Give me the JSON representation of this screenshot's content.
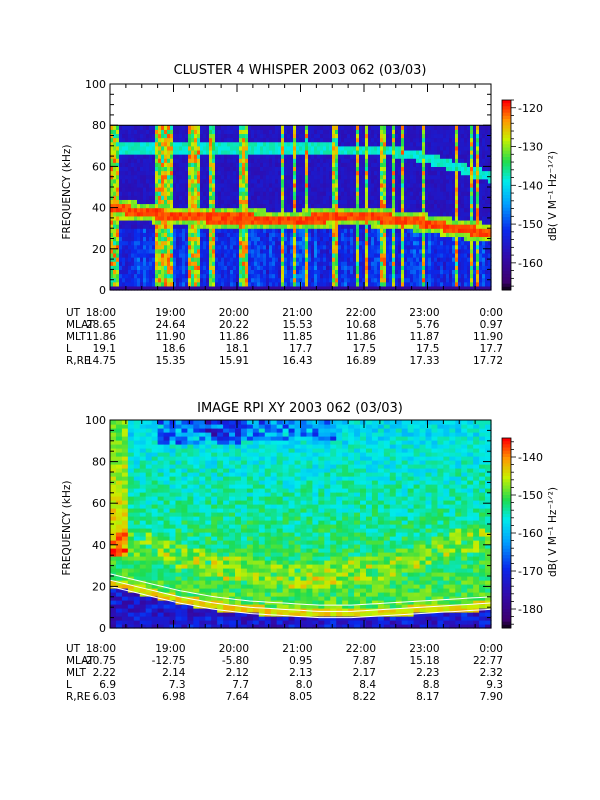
{
  "chart_data": [
    {
      "type": "heatmap",
      "title": "CLUSTER 4 WHISPER 2003 062 (03/03)",
      "ylabel": "FREQUENCY (kHz)",
      "ylim": [
        0,
        100
      ],
      "yticks": [
        "0",
        "20",
        "40",
        "60",
        "80",
        "100"
      ],
      "ytick_values": [
        0,
        20,
        40,
        60,
        80,
        100
      ],
      "xlim": [
        18,
        24
      ],
      "data_fmax": 80,
      "colorbar": {
        "label": "dB( V M⁻¹ Hz⁻¹ᐟ²)",
        "range": [
          -167,
          -118
        ],
        "ticks": [
          "-120",
          "-130",
          "-140",
          "-150",
          "-160"
        ],
        "tick_values": [
          -120,
          -130,
          -140,
          -150,
          -160
        ]
      },
      "features": {
        "upper_band_kHz": [
          69,
          69,
          69,
          69,
          69,
          69,
          69,
          68,
          68,
          65,
          60,
          55
        ],
        "lower_band_kHz": [
          40,
          38,
          36,
          35,
          35,
          34,
          35,
          36,
          35,
          33,
          30,
          28
        ],
        "spikes_hours": [
          18.05,
          18.1,
          18.75,
          18.85,
          18.95,
          19.3,
          19.4,
          19.6,
          20.05,
          20.1,
          20.55,
          20.7,
          20.9,
          21.1,
          21.5,
          21.55,
          21.9,
          22.05,
          22.3,
          22.45,
          22.6,
          22.95,
          23.45,
          23.7,
          23.8
        ],
        "spike_width_hours": [
          0.05,
          0.03,
          0.04,
          0.08,
          0.03,
          0.05,
          0.03,
          0.04,
          0.04,
          0.06,
          0.02,
          0.02,
          0.02,
          0.03,
          0.02,
          0.02,
          0.03,
          0.03,
          0.04,
          0.02,
          0.03,
          0.03,
          0.02,
          0.03,
          0.03
        ]
      },
      "ephemeris": {
        "rows": [
          {
            "label": "UT",
            "values": [
              "18:00",
              "19:00",
              "20:00",
              "21:00",
              "22:00",
              "23:00",
              "0:00"
            ]
          },
          {
            "label": "MLAT",
            "values": [
              "28.65",
              "24.64",
              "20.22",
              "15.53",
              "10.68",
              "5.76",
              "0.97"
            ]
          },
          {
            "label": "MLT",
            "values": [
              "11.86",
              "11.90",
              "11.86",
              "11.85",
              "11.86",
              "11.87",
              "11.90"
            ]
          },
          {
            "label": "L",
            "values": [
              "19.1",
              "18.6",
              "18.1",
              "17.7",
              "17.5",
              "17.5",
              "17.7"
            ]
          },
          {
            "label": "R,RE",
            "values": [
              "14.75",
              "15.35",
              "15.91",
              "16.43",
              "16.89",
              "17.33",
              "17.72"
            ]
          }
        ]
      }
    },
    {
      "type": "heatmap",
      "title": "IMAGE RPI XY 2003 062 (03/03)",
      "ylabel": "FREQUENCY (kHz)",
      "ylim": [
        0,
        100
      ],
      "yticks": [
        "0",
        "20",
        "40",
        "60",
        "80",
        "100"
      ],
      "ytick_values": [
        0,
        20,
        40,
        60,
        80,
        100
      ],
      "xlim": [
        18,
        24
      ],
      "data_fmax": 100,
      "colorbar": {
        "label": "dB( V M⁻¹ Hz⁻¹ᐟ²)",
        "range": [
          -185,
          -135
        ],
        "ticks": [
          "-140",
          "-150",
          "-160",
          "-170",
          "-180"
        ],
        "tick_values": [
          -140,
          -150,
          -160,
          -170,
          -180
        ]
      },
      "features": {
        "warm_band_kHz": [
          40,
          42,
          35,
          30,
          28,
          25,
          25,
          28,
          30,
          35,
          42,
          42
        ],
        "lower_cutoff_kHz": [
          20,
          16,
          12,
          9,
          7,
          6,
          5,
          5,
          6,
          7,
          8,
          9
        ]
      },
      "ephemeris": {
        "rows": [
          {
            "label": "UT",
            "values": [
              "18:00",
              "19:00",
              "20:00",
              "21:00",
              "22:00",
              "23:00",
              "0:00"
            ]
          },
          {
            "label": "MLAT",
            "values": [
              "-20.75",
              "-12.75",
              "-5.80",
              "0.95",
              "7.87",
              "15.18",
              "22.77"
            ]
          },
          {
            "label": "MLT",
            "values": [
              "2.22",
              "2.14",
              "2.12",
              "2.13",
              "2.17",
              "2.23",
              "2.32"
            ]
          },
          {
            "label": "L",
            "values": [
              "6.9",
              "7.3",
              "7.7",
              "8.0",
              "8.4",
              "8.8",
              "9.3"
            ]
          },
          {
            "label": "R,RE",
            "values": [
              "6.03",
              "6.98",
              "7.64",
              "8.05",
              "8.22",
              "8.17",
              "7.90"
            ]
          }
        ]
      }
    }
  ]
}
